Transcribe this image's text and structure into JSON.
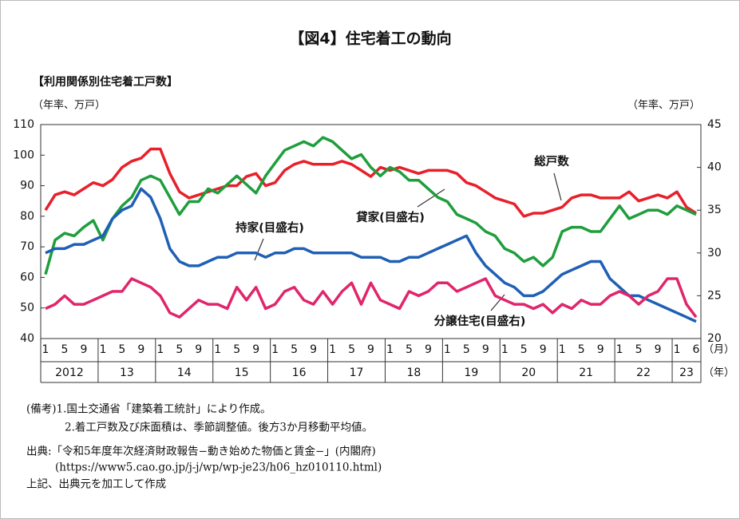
{
  "chart_data": {
    "type": "line",
    "title": "【図4】住宅着工の動向",
    "subtitle": "【利用関係別住宅着工戸数】",
    "ylabel": "（年率、万戸）",
    "y2label": "（年率、万戸）",
    "xunit": "（月）",
    "yearunit": "（年）",
    "categories": [
      "1",
      null,
      "5",
      null,
      "9",
      null,
      "1",
      null,
      "5",
      null,
      "9",
      null,
      "1",
      null,
      "5",
      null,
      "9",
      null,
      "1",
      null,
      "5",
      null,
      "9",
      null,
      "1",
      null,
      "5",
      null,
      "9",
      null,
      "1",
      null,
      "5",
      null,
      "9",
      null,
      "1",
      null,
      "5",
      null,
      "9",
      null,
      "1",
      null,
      "5",
      null,
      "9",
      null,
      "1",
      null,
      "5",
      null,
      "9",
      null,
      "1",
      null,
      "5",
      null,
      "9",
      null,
      "1",
      null,
      "5",
      null,
      "9",
      null,
      "1",
      null,
      "6"
    ],
    "years": [
      "2012",
      "13",
      "14",
      "15",
      "16",
      "17",
      "18",
      "19",
      "20",
      "21",
      "22",
      "23"
    ],
    "ylim": [
      40,
      110
    ],
    "yticks": [
      40,
      50,
      60,
      70,
      80,
      90,
      100,
      110
    ],
    "y2lim": [
      20,
      45
    ],
    "y2ticks": [
      20,
      25,
      30,
      35,
      40,
      45
    ],
    "series": [
      {
        "name": "総戸数",
        "color": "#e8202a",
        "values": [
          82,
          87,
          88,
          87,
          89,
          91,
          90,
          92,
          96,
          98,
          99,
          102,
          102,
          94,
          88,
          86,
          87,
          88,
          89,
          90,
          90,
          93,
          94,
          90,
          91,
          95,
          97,
          98,
          97,
          97,
          97,
          98,
          97,
          95,
          93,
          96,
          95,
          96,
          95,
          94,
          95,
          95,
          95,
          94,
          91,
          90,
          88,
          86,
          85,
          84,
          80,
          81,
          81,
          82,
          83,
          86,
          87,
          87,
          86,
          86,
          86,
          88,
          85,
          86,
          87,
          86,
          88,
          83,
          81
        ]
      },
      {
        "name": "貸家(目盛右)",
        "color": "#1e9e3c",
        "axis": "y2",
        "values": [
          27.5,
          31.5,
          32.3,
          32,
          33,
          33.8,
          31.5,
          34,
          35.5,
          36.5,
          38.5,
          39,
          38.5,
          36.5,
          34.5,
          36,
          36,
          37.5,
          37,
          38,
          39,
          38,
          37,
          39,
          40.5,
          42,
          42.5,
          43,
          42.5,
          43.5,
          43,
          42,
          41,
          41.5,
          40,
          39,
          40,
          39.5,
          38.5,
          38.5,
          37.5,
          36.5,
          36,
          34.5,
          34,
          33.5,
          32.5,
          32,
          30.5,
          30,
          29,
          29.5,
          28.5,
          29.5,
          32.5,
          33,
          33,
          32.5,
          32.5,
          34,
          35.5,
          34,
          34.5,
          35,
          35,
          34.5,
          35.5,
          35,
          34.5
        ]
      },
      {
        "name": "持家(目盛右)",
        "color": "#1f5fb5",
        "axis": "y2",
        "values": [
          30,
          30.5,
          30.5,
          31,
          31,
          31.5,
          32,
          34,
          35,
          35.5,
          37.5,
          36.5,
          34,
          30.5,
          29,
          28.5,
          28.5,
          29,
          29.5,
          29.5,
          30,
          30,
          30,
          29.5,
          30,
          30,
          30.5,
          30.5,
          30,
          30,
          30,
          30,
          30,
          29.5,
          29.5,
          29.5,
          29,
          29,
          29.5,
          29.5,
          30,
          30.5,
          31,
          31.5,
          32,
          30,
          28.5,
          27.5,
          26.5,
          26,
          25,
          25,
          25.5,
          26.5,
          27.5,
          28,
          28.5,
          29,
          29,
          27,
          26,
          25,
          25,
          24.5,
          24,
          23.5,
          23,
          22.5,
          22
        ]
      },
      {
        "name": "分譲住宅(目盛右)",
        "color": "#e0256b",
        "axis": "y2",
        "values": [
          23.5,
          24,
          25,
          24,
          24,
          24.5,
          25,
          25.5,
          25.5,
          27,
          26.5,
          26,
          25,
          23,
          22.5,
          23.5,
          24.5,
          24,
          24,
          23.5,
          26,
          24.5,
          26,
          23.5,
          24,
          25.5,
          26,
          24.5,
          24,
          25.5,
          24,
          25.5,
          26.5,
          24,
          26.5,
          24.5,
          24,
          23.5,
          25.5,
          25,
          25.5,
          26.5,
          26.5,
          25.5,
          26,
          26.5,
          27,
          25,
          24.5,
          24,
          24,
          23.5,
          24,
          23,
          24,
          23.5,
          24.5,
          24,
          24,
          25,
          25.5,
          25,
          24,
          25,
          25.5,
          27,
          27,
          24,
          22.5
        ]
      }
    ],
    "notes": [
      "(備考)1.国土交通省「建築着工統計」により作成。",
      "2.着工戸数及び床面積は、季節調整値。後方3か月移動平均値。"
    ],
    "source": [
      "出典:「令和5年度年次経済財政報告−動き始めた物価と賃金−」(内閣府)",
      "(https://www5.cao.go.jp/j-j/wp/wp-je23/h06_hz010110.html)",
      "上記、出典元を加工して作成"
    ]
  }
}
